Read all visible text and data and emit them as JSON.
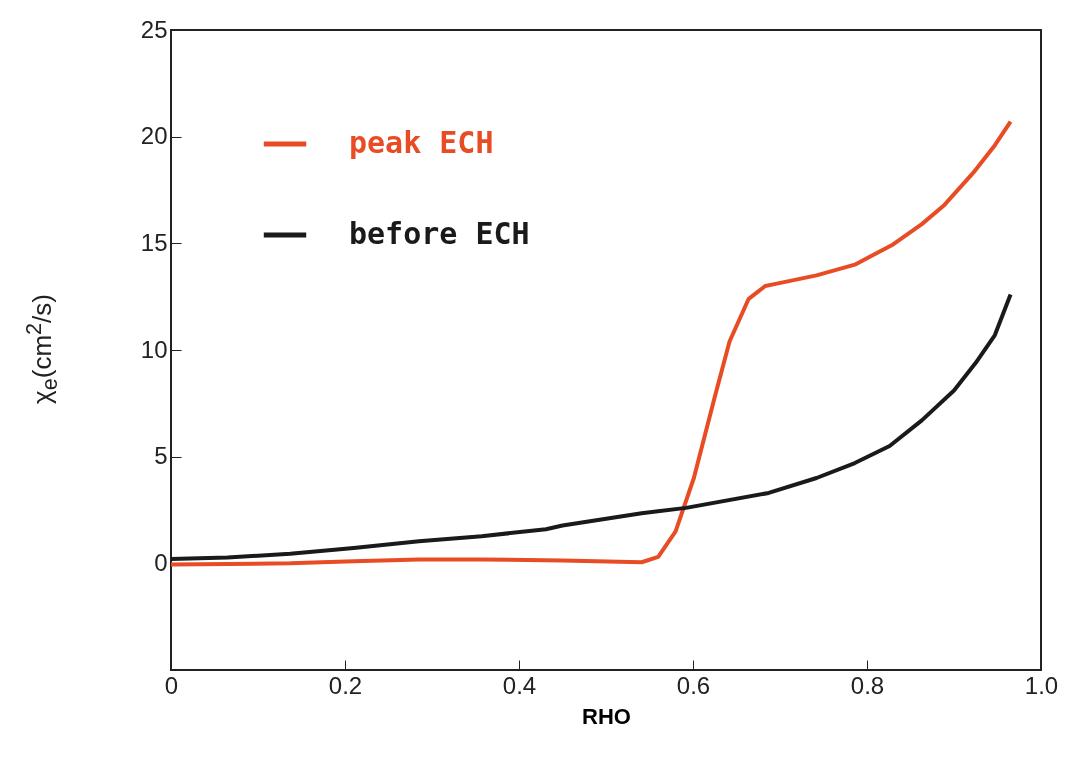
{
  "chart_data": {
    "type": "line",
    "xlabel": "RHO",
    "ylabel": "χ$_{e}$(cm$^{2}$/s)",
    "xlim": [
      0,
      1
    ],
    "ylim": [
      -5,
      25
    ],
    "xticks": [
      0,
      0.2,
      0.4,
      0.6,
      0.8,
      {
        "value": 1,
        "label": "1.0"
      }
    ],
    "yticks": [
      0,
      5,
      10,
      15,
      20,
      25
    ],
    "grid": false,
    "legend": "top left",
    "marker": "none",
    "line_style": "solid",
    "series": [
      {
        "name": "peak ECH",
        "color": "#e84c24",
        "x": [
          0,
          0.137,
          0.21,
          0.285,
          0.357,
          0.45,
          0.541,
          0.56,
          0.58,
          0.601,
          0.625,
          0.642,
          0.664,
          0.683,
          0.695,
          0.742,
          0.786,
          0.83,
          0.863,
          0.889,
          0.922,
          0.947,
          0.965
        ],
        "values": [
          -0.05,
          0,
          0.1,
          0.18,
          0.18,
          0.13,
          0.05,
          0.3,
          1.5,
          4.0,
          7.8,
          10.4,
          12.4,
          13.0,
          13.1,
          13.5,
          14.0,
          14.95,
          15.9,
          16.8,
          18.3,
          19.6,
          20.7
        ]
      },
      {
        "name": "before ECH",
        "color": "#1a1a1a",
        "x": [
          0,
          0.065,
          0.137,
          0.21,
          0.285,
          0.357,
          0.431,
          0.45,
          0.541,
          0.592,
          0.687,
          0.742,
          0.786,
          0.826,
          0.863,
          0.9,
          0.925,
          0.947,
          0.965
        ],
        "values": [
          0.2,
          0.27,
          0.45,
          0.72,
          1.04,
          1.27,
          1.6,
          1.77,
          2.35,
          2.6,
          3.3,
          4.0,
          4.7,
          5.5,
          6.7,
          8.1,
          9.4,
          10.7,
          12.6
        ]
      }
    ]
  }
}
